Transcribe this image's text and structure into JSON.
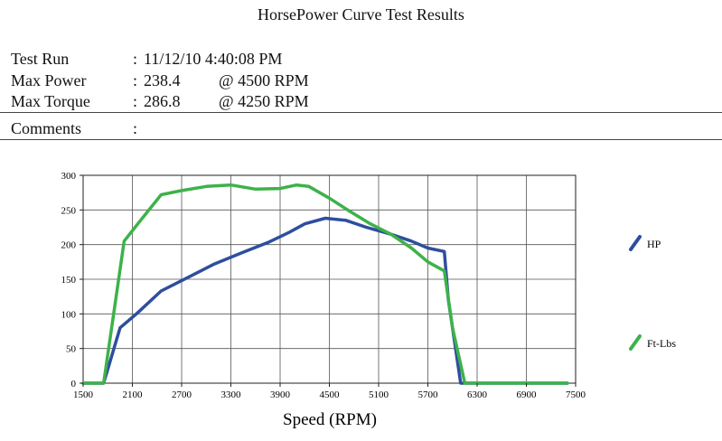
{
  "report": {
    "title": "HorsePower Curve Test Results",
    "test_run": {
      "label": "Test Run",
      "colon": ":",
      "value": "11/12/10 4:40:08 PM"
    },
    "max_power": {
      "label": "Max Power",
      "colon": ":",
      "value": "238.4",
      "at": "@ 4500  RPM"
    },
    "max_torque": {
      "label": "Max Torque",
      "colon": ":",
      "value": "286.8",
      "at": "@ 4250  RPM"
    },
    "comments": {
      "label": "Comments",
      "colon": ":",
      "value": ""
    }
  },
  "chart_data": {
    "type": "line",
    "title": "",
    "xlabel": "Speed (RPM)",
    "ylabel": "",
    "xlim": [
      1500,
      7500
    ],
    "ylim": [
      0,
      300
    ],
    "x_ticks": [
      1500,
      2100,
      2700,
      3300,
      3900,
      4500,
      5100,
      5700,
      6300,
      6900,
      7500
    ],
    "y_ticks": [
      0,
      50,
      100,
      150,
      200,
      250,
      300
    ],
    "grid": true,
    "legend_position": "right",
    "series": [
      {
        "name": "HP",
        "color": "#2e4e9e",
        "x": [
          1500,
          1750,
          1950,
          2150,
          2450,
          2800,
          3100,
          3450,
          3750,
          4000,
          4200,
          4450,
          4700,
          4950,
          5250,
          5500,
          5700,
          5900,
          5950,
          6100,
          6300,
          7000,
          7400
        ],
        "y": [
          0,
          0,
          80,
          100,
          133,
          154,
          172,
          189,
          203,
          217,
          230,
          238,
          235,
          225,
          215,
          205,
          195,
          190,
          120,
          0,
          0,
          0,
          0
        ]
      },
      {
        "name": "Ft-Lbs",
        "color": "#3db24a",
        "x": [
          1500,
          1750,
          2000,
          2200,
          2450,
          2700,
          3000,
          3300,
          3600,
          3900,
          4100,
          4250,
          4500,
          4750,
          5000,
          5250,
          5500,
          5700,
          5900,
          6000,
          6150,
          6300,
          7000,
          7400
        ],
        "y": [
          0,
          0,
          205,
          235,
          272,
          278,
          284,
          286,
          280,
          281,
          286,
          284,
          267,
          248,
          230,
          215,
          195,
          175,
          162,
          80,
          0,
          0,
          0,
          0
        ]
      }
    ]
  }
}
